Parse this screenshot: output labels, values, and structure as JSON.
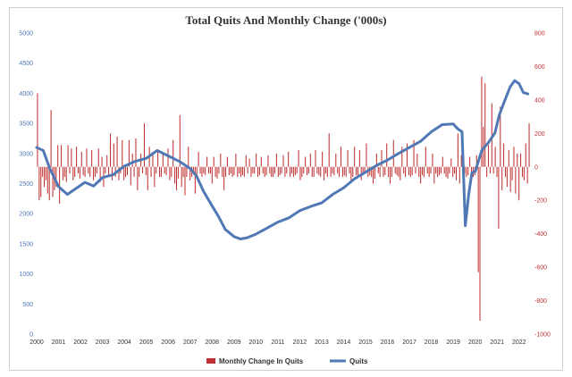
{
  "chart_data": {
    "type": "bar+line",
    "title": "Total Quits And Monthly Change ('000s)",
    "x_labels": [
      "2000",
      "2001",
      "2002",
      "2003",
      "2004",
      "2005",
      "2006",
      "2007",
      "2008",
      "2009",
      "2010",
      "2011",
      "2012",
      "2013",
      "2014",
      "2015",
      "2016",
      "2017",
      "2018",
      "2019",
      "2020",
      "2021",
      "2022"
    ],
    "x_range": [
      2000,
      2022.5
    ],
    "left_axis": {
      "label": "Quits",
      "ticks": [
        0,
        500,
        1000,
        1500,
        2000,
        2500,
        3000,
        3500,
        4000,
        4500,
        5000
      ],
      "ylim": [
        0,
        5000
      ],
      "color": "#4f78b5"
    },
    "right_axis": {
      "label": "Monthly Change In Quits",
      "ticks": [
        -1000,
        -800,
        -600,
        -400,
        -200,
        0,
        200,
        400,
        600,
        800
      ],
      "ylim": [
        -1000,
        800
      ],
      "color": "#c03232"
    },
    "series": [
      {
        "name": "Quits",
        "type": "line",
        "axis": "left",
        "color": "#4f78b5",
        "x": [
          2000.0,
          2000.3,
          2000.6,
          2001.0,
          2001.4,
          2001.8,
          2002.2,
          2002.6,
          2003.0,
          2003.5,
          2004.0,
          2004.5,
          2005.0,
          2005.5,
          2006.0,
          2006.5,
          2007.0,
          2007.3,
          2007.6,
          2008.0,
          2008.3,
          2008.6,
          2009.0,
          2009.3,
          2009.6,
          2010.0,
          2010.5,
          2011.0,
          2011.5,
          2012.0,
          2012.5,
          2013.0,
          2013.5,
          2014.0,
          2014.5,
          2015.0,
          2015.5,
          2016.0,
          2016.5,
          2017.0,
          2017.5,
          2018.0,
          2018.5,
          2019.0,
          2019.2,
          2019.4,
          2019.55,
          2019.7,
          2019.85,
          2020.0,
          2020.3,
          2020.6,
          2020.9,
          2021.1,
          2021.35,
          2021.6,
          2021.8,
          2022.0,
          2022.2,
          2022.4
        ],
        "values": [
          3100,
          3050,
          2750,
          2450,
          2320,
          2420,
          2520,
          2460,
          2600,
          2650,
          2790,
          2870,
          2920,
          3050,
          2960,
          2870,
          2750,
          2620,
          2380,
          2130,
          1950,
          1740,
          1620,
          1580,
          1600,
          1660,
          1760,
          1860,
          1930,
          2050,
          2120,
          2180,
          2320,
          2430,
          2580,
          2690,
          2800,
          2890,
          3000,
          3100,
          3200,
          3360,
          3480,
          3490,
          3410,
          3360,
          1800,
          2310,
          2680,
          2700,
          3050,
          3180,
          3340,
          3640,
          3880,
          4110,
          4210,
          4160,
          4010,
          3990
        ]
      },
      {
        "name": "Monthly Change In Quits",
        "type": "bar",
        "axis": "right",
        "color": "#c03232",
        "values": [
          440,
          -200,
          -180,
          -60,
          -120,
          -80,
          -160,
          -200,
          340,
          -180,
          -140,
          -120,
          130,
          -220,
          130,
          -80,
          -60,
          -90,
          130,
          -40,
          110,
          -80,
          -60,
          120,
          -40,
          -70,
          90,
          -50,
          -60,
          110,
          -40,
          -60,
          100,
          -80,
          -60,
          -40,
          110,
          -90,
          60,
          -120,
          -40,
          70,
          -60,
          200,
          -80,
          140,
          -60,
          180,
          -80,
          -40,
          160,
          -80,
          -60,
          -50,
          160,
          -110,
          80,
          -60,
          170,
          -140,
          -60,
          80,
          -40,
          260,
          -50,
          -140,
          120,
          -60,
          90,
          -120,
          -40,
          100,
          -60,
          -60,
          80,
          -40,
          -50,
          110,
          -80,
          -60,
          160,
          -100,
          -140,
          -70,
          310,
          -120,
          -60,
          -170,
          -60,
          120,
          -80,
          -60,
          -40,
          -160,
          -60,
          90,
          -40,
          -60,
          -40,
          -50,
          60,
          -40,
          -40,
          -100,
          60,
          -60,
          -70,
          -40,
          80,
          -60,
          -140,
          -60,
          60,
          -50,
          -40,
          -60,
          -50,
          80,
          -60,
          -40,
          -60,
          -50,
          -60,
          70,
          -40,
          50,
          -60,
          -40,
          -40,
          80,
          -60,
          -50,
          60,
          -40,
          -60,
          -50,
          70,
          -40,
          -60,
          -60,
          -40,
          80,
          -60,
          -50,
          -40,
          70,
          -60,
          -40,
          90,
          -60,
          -40,
          -60,
          -50,
          -40,
          100,
          -80,
          -60,
          -40,
          60,
          -50,
          -40,
          80,
          -60,
          -60,
          100,
          -40,
          -50,
          -60,
          90,
          -80,
          -40,
          -60,
          200,
          -60,
          -40,
          -50,
          80,
          -40,
          -60,
          120,
          -60,
          -50,
          -60,
          100,
          -40,
          -80,
          -60,
          120,
          -50,
          -60,
          100,
          -80,
          -50,
          -40,
          140,
          -60,
          -50,
          -60,
          -100,
          -70,
          80,
          -40,
          -60,
          100,
          -60,
          -50,
          140,
          -60,
          -100,
          -60,
          160,
          -40,
          -50,
          -60,
          -80,
          120,
          -40,
          -60,
          140,
          -50,
          -60,
          -50,
          160,
          -40,
          80,
          -60,
          -100,
          -50,
          -60,
          120,
          -40,
          -60,
          -40,
          80,
          -100,
          -40,
          -60,
          -50,
          -40,
          60,
          -40,
          -60,
          -70,
          -40,
          50,
          -60,
          -40,
          -80,
          200,
          -100,
          70,
          -60,
          -40,
          -60,
          -50,
          60,
          -40,
          -60,
          -50,
          70,
          -630,
          -920,
          540,
          240,
          500,
          -60,
          130,
          -40,
          380,
          -40,
          120,
          -60,
          -370,
          360,
          -140,
          140,
          -60,
          -120,
          100,
          -150,
          -80,
          120,
          -160,
          80,
          -200,
          80,
          -60,
          -80,
          140,
          -100,
          260
        ]
      }
    ],
    "legend": [
      "Monthly Change In Quits",
      "Quits"
    ],
    "legend_position": "bottom-center",
    "grid": false
  }
}
